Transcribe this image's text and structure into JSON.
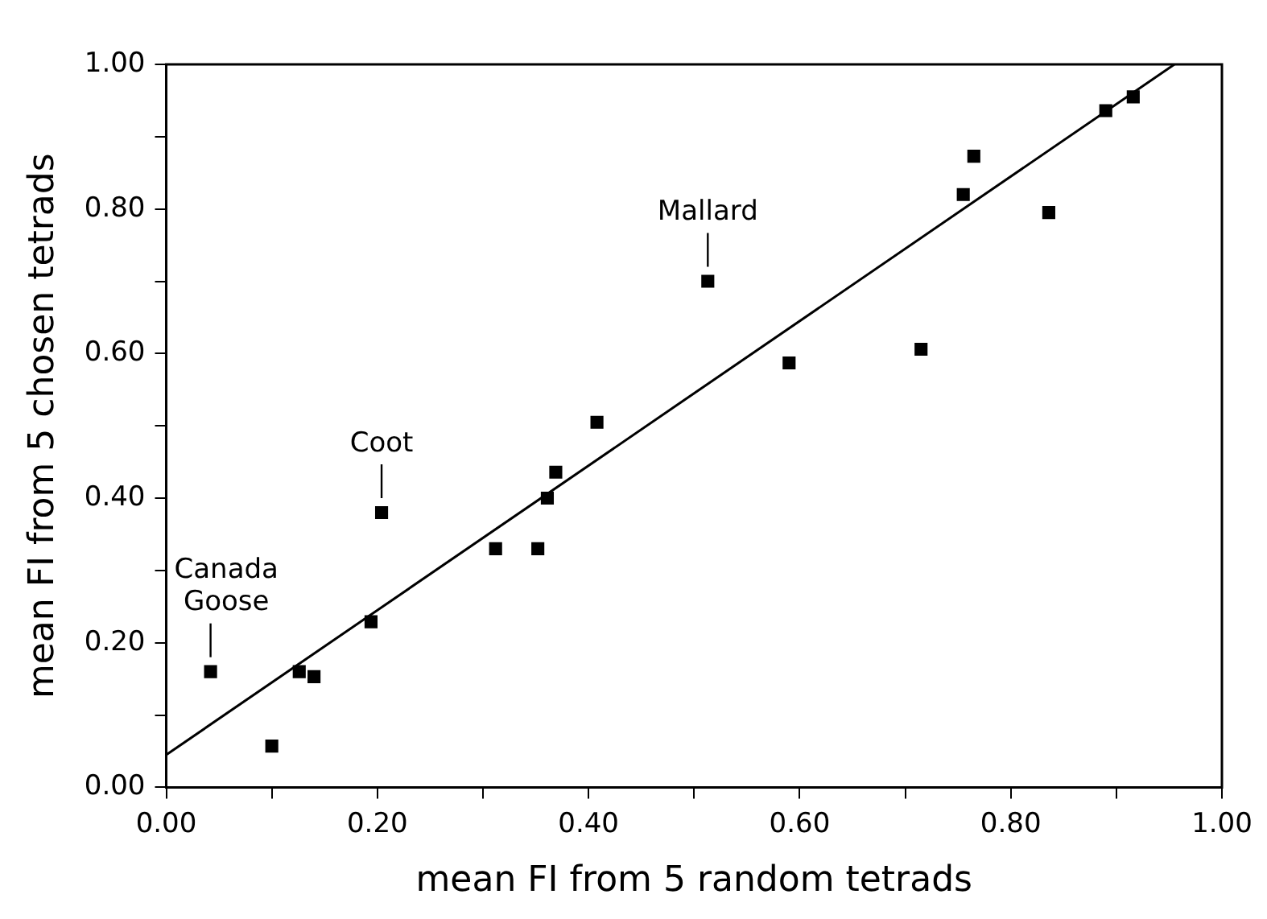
{
  "chart_data": {
    "type": "scatter",
    "xlabel": "mean FI from 5 random tetrads",
    "ylabel": "mean FI from 5 chosen tetrads",
    "xlim": [
      0,
      1
    ],
    "ylim": [
      0,
      1
    ],
    "xticks": [
      {
        "value": 0,
        "label": "0.00"
      },
      {
        "value": 0.1,
        "label": null
      },
      {
        "value": 0.2,
        "label": "0.20"
      },
      {
        "value": 0.3,
        "label": null
      },
      {
        "value": 0.4,
        "label": "0.40"
      },
      {
        "value": 0.5,
        "label": null
      },
      {
        "value": 0.6,
        "label": "0.60"
      },
      {
        "value": 0.7,
        "label": null
      },
      {
        "value": 0.8,
        "label": "0.80"
      },
      {
        "value": 0.9,
        "label": null
      },
      {
        "value": 1,
        "label": "1.00"
      }
    ],
    "yticks": [
      {
        "value": 0,
        "label": "0.00"
      },
      {
        "value": 0.1,
        "label": null
      },
      {
        "value": 0.2,
        "label": "0.20"
      },
      {
        "value": 0.3,
        "label": null
      },
      {
        "value": 0.4,
        "label": "0.40"
      },
      {
        "value": 0.5,
        "label": null
      },
      {
        "value": 0.6,
        "label": "0.60"
      },
      {
        "value": 0.7,
        "label": null
      },
      {
        "value": 0.8,
        "label": "0.80"
      },
      {
        "value": 0.9,
        "label": null
      },
      {
        "value": 1,
        "label": "1.00"
      }
    ],
    "grid": false,
    "legend": false,
    "series": [
      {
        "type": "scatter",
        "marker": "square",
        "color": "#000000",
        "x": [
          0.042,
          0.1,
          0.126,
          0.14,
          0.194,
          0.204,
          0.312,
          0.352,
          0.361,
          0.369,
          0.408,
          0.513,
          0.59,
          0.715,
          0.755,
          0.765,
          0.836,
          0.89,
          0.916
        ],
        "values": [
          0.16,
          0.057,
          0.16,
          0.153,
          0.229,
          0.38,
          0.33,
          0.33,
          0.4,
          0.436,
          0.505,
          0.7,
          0.587,
          0.606,
          0.82,
          0.873,
          0.795,
          0.936,
          0.955
        ]
      },
      {
        "type": "line",
        "marker": "none",
        "line_style": "solid",
        "color": "#000000",
        "x": [
          0,
          0.955
        ],
        "values": [
          0.045,
          1.0
        ]
      }
    ],
    "annotations": [
      {
        "text": "Canada Goose",
        "x": 0.042,
        "y": 0.16
      },
      {
        "text": "Coot",
        "x": 0.204,
        "y": 0.38
      },
      {
        "text": "Mallard",
        "x": 0.513,
        "y": 0.7
      }
    ]
  }
}
